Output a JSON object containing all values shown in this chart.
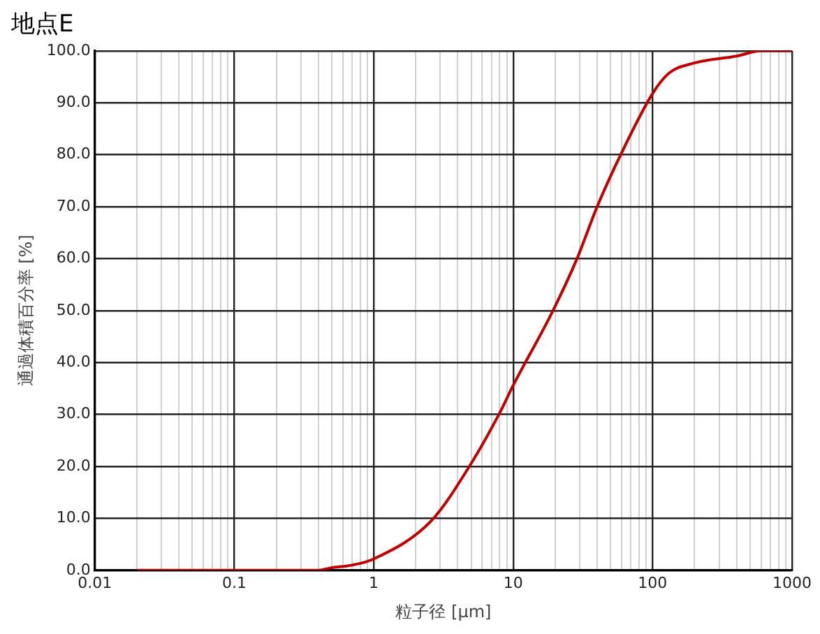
{
  "chart_data": {
    "type": "line",
    "title": "地点E",
    "xlabel": "粒子径 [µm]",
    "ylabel": "通過体積百分率 [%]",
    "log": "x",
    "grid": true,
    "legend": false,
    "marker": "none",
    "line_style": "solid",
    "x": [
      0.02,
      0.2,
      0.4,
      0.5,
      0.7,
      1,
      2.6,
      4.9,
      8,
      10,
      19.3,
      28.7,
      40,
      59,
      100,
      131,
      195,
      402,
      600,
      1000
    ],
    "series": [
      {
        "color": "#c00000",
        "values": [
          0,
          0,
          0,
          0.5,
          1,
          2.2,
          9.6,
          20.2,
          30.3,
          35.6,
          50,
          60,
          70,
          80,
          91.8,
          95.7,
          97.6,
          99,
          100,
          100
        ]
      }
    ],
    "xlim": [
      0.01,
      1000
    ],
    "xticks": [
      0.01,
      {
        "value": 0.02,
        "label": null
      },
      {
        "value": 0.03,
        "label": null
      },
      {
        "value": 0.04,
        "label": null
      },
      {
        "value": 0.05,
        "label": null
      },
      {
        "value": 0.06,
        "label": null
      },
      {
        "value": 0.07,
        "label": null
      },
      {
        "value": 0.08,
        "label": null
      },
      {
        "value": 0.09,
        "label": null
      },
      0.1,
      {
        "value": 0.2,
        "label": null
      },
      {
        "value": 0.3,
        "label": null
      },
      {
        "value": 0.4,
        "label": null
      },
      {
        "value": 0.5,
        "label": null
      },
      {
        "value": 0.6,
        "label": null
      },
      {
        "value": 0.7,
        "label": null
      },
      {
        "value": 0.8,
        "label": null
      },
      {
        "value": 0.9,
        "label": null
      },
      1,
      {
        "value": 2,
        "label": null
      },
      {
        "value": 3,
        "label": null
      },
      {
        "value": 4,
        "label": null
      },
      {
        "value": 5,
        "label": null
      },
      {
        "value": 6,
        "label": null
      },
      {
        "value": 7,
        "label": null
      },
      {
        "value": 8,
        "label": null
      },
      {
        "value": 9,
        "label": null
      },
      10,
      {
        "value": 20,
        "label": null
      },
      {
        "value": 30,
        "label": null
      },
      {
        "value": 40,
        "label": null
      },
      {
        "value": 50,
        "label": null
      },
      {
        "value": 60,
        "label": null
      },
      {
        "value": 70,
        "label": null
      },
      {
        "value": 80,
        "label": null
      },
      {
        "value": 90,
        "label": null
      },
      100,
      {
        "value": 200,
        "label": null
      },
      {
        "value": 300,
        "label": null
      },
      {
        "value": 400,
        "label": null
      },
      {
        "value": 500,
        "label": null
      },
      {
        "value": 600,
        "label": null
      },
      {
        "value": 700,
        "label": null
      },
      {
        "value": 800,
        "label": null
      },
      {
        "value": 900,
        "label": null
      },
      1000
    ],
    "ylim": [
      0,
      100
    ],
    "yticks": [
      {
        "value": 0,
        "label": "0.0"
      },
      {
        "value": 10,
        "label": "10.0"
      },
      {
        "value": 20,
        "label": "20.0"
      },
      {
        "value": 30,
        "label": "30.0"
      },
      {
        "value": 40,
        "label": "40.0"
      },
      {
        "value": 50,
        "label": "50.0"
      },
      {
        "value": 60,
        "label": "60.0"
      },
      {
        "value": 70,
        "label": "70.0"
      },
      {
        "value": 80,
        "label": "80.0"
      },
      {
        "value": 90,
        "label": "90.0"
      },
      {
        "value": 100,
        "label": "100.0"
      }
    ]
  }
}
